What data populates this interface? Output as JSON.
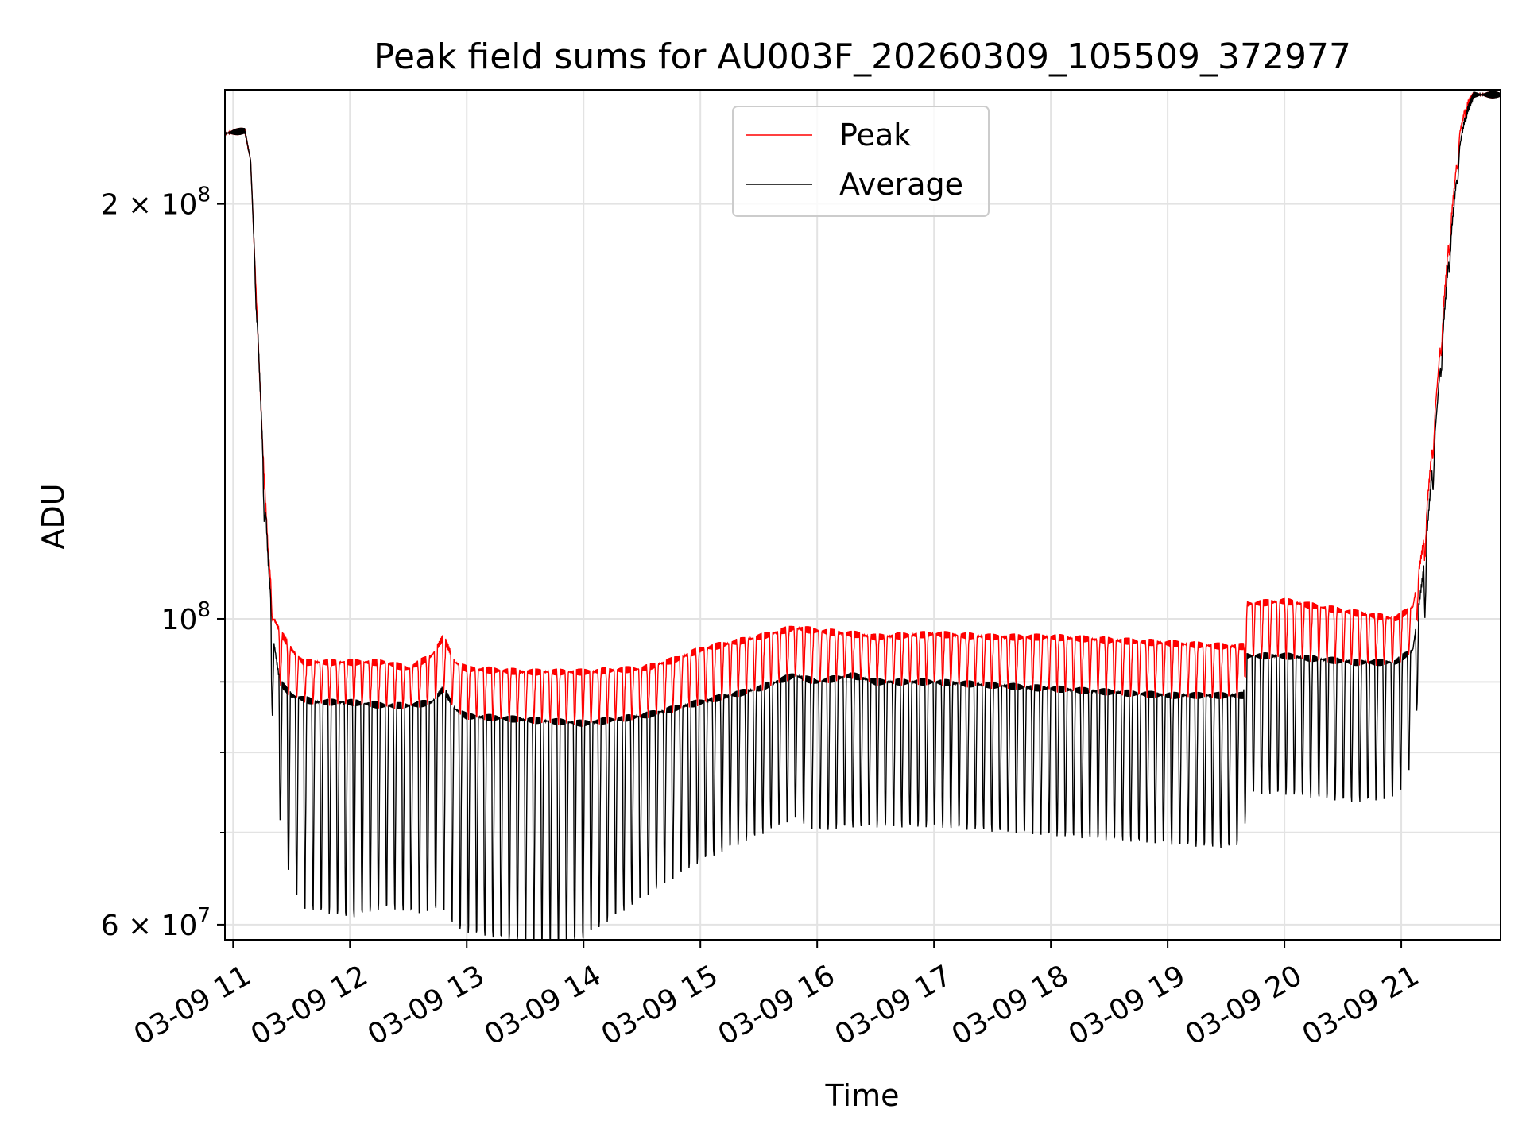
{
  "chart_data": {
    "type": "line",
    "title": "Peak field sums for AU003F_20260309_105509_372977",
    "xlabel": "Time",
    "ylabel": "ADU",
    "yscale": "log",
    "xlim": [
      10.93,
      21.85
    ],
    "ylim": [
      58500000,
      242000000
    ],
    "grid": true,
    "legend": {
      "location": "upper center",
      "entries": [
        "Peak",
        "Average"
      ]
    },
    "x_ticks": [
      {
        "value": 11,
        "label": "03-09 11"
      },
      {
        "value": 12,
        "label": "03-09 12"
      },
      {
        "value": 13,
        "label": "03-09 13"
      },
      {
        "value": 14,
        "label": "03-09 14"
      },
      {
        "value": 15,
        "label": "03-09 15"
      },
      {
        "value": 16,
        "label": "03-09 16"
      },
      {
        "value": 17,
        "label": "03-09 17"
      },
      {
        "value": 18,
        "label": "03-09 18"
      },
      {
        "value": 19,
        "label": "03-09 19"
      },
      {
        "value": 20,
        "label": "03-09 20"
      },
      {
        "value": 21,
        "label": "03-09 21"
      }
    ],
    "y_major_ticks": [
      {
        "value": 60000000,
        "base": "6 × 10",
        "exp": "7"
      },
      {
        "value": 100000000,
        "base": "10",
        "exp": "8"
      },
      {
        "value": 200000000,
        "base": "2 × 10",
        "exp": "8"
      }
    ],
    "y_minor_ticks": [
      70000000,
      80000000,
      90000000
    ],
    "series": [
      {
        "name": "Peak",
        "color": "#ff0000",
        "envelope_high": [
          [
            10.93,
            225000000
          ],
          [
            11.1,
            226000000
          ],
          [
            11.15,
            215000000
          ],
          [
            11.2,
            170000000
          ],
          [
            11.25,
            135000000
          ],
          [
            11.3,
            112000000
          ],
          [
            11.35,
            100000000
          ],
          [
            11.4,
            98000000
          ],
          [
            11.5,
            95000000
          ],
          [
            11.6,
            93000000
          ],
          [
            12.0,
            93000000
          ],
          [
            12.3,
            93000000
          ],
          [
            12.5,
            92000000
          ],
          [
            12.6,
            93000000
          ],
          [
            12.7,
            94000000
          ],
          [
            12.8,
            97000000
          ],
          [
            12.9,
            93000000
          ],
          [
            13.0,
            92000000
          ],
          [
            13.5,
            91500000
          ],
          [
            14.0,
            91500000
          ],
          [
            14.5,
            92000000
          ],
          [
            14.8,
            93500000
          ],
          [
            15.0,
            95000000
          ],
          [
            15.5,
            97000000
          ],
          [
            15.8,
            98500000
          ],
          [
            16.0,
            98000000
          ],
          [
            16.3,
            97500000
          ],
          [
            16.5,
            97000000
          ],
          [
            17.0,
            97500000
          ],
          [
            17.5,
            97000000
          ],
          [
            18.0,
            97000000
          ],
          [
            18.5,
            96500000
          ],
          [
            19.0,
            96000000
          ],
          [
            19.5,
            95500000
          ],
          [
            19.65,
            95500000
          ],
          [
            19.68,
            102500000
          ],
          [
            20.0,
            103000000
          ],
          [
            20.3,
            102000000
          ],
          [
            20.6,
            101000000
          ],
          [
            20.95,
            100000000
          ],
          [
            21.1,
            102000000
          ],
          [
            21.2,
            115000000
          ],
          [
            21.3,
            145000000
          ],
          [
            21.4,
            185000000
          ],
          [
            21.5,
            225000000
          ],
          [
            21.55,
            235000000
          ],
          [
            21.62,
            240000000
          ],
          [
            21.85,
            240000000
          ]
        ],
        "envelope_low": [
          [
            10.93,
            225000000
          ],
          [
            11.1,
            226000000
          ],
          [
            11.15,
            215000000
          ],
          [
            11.2,
            170000000
          ],
          [
            11.25,
            135000000
          ],
          [
            11.3,
            110000000
          ],
          [
            11.35,
            96000000
          ],
          [
            11.4,
            90000000
          ],
          [
            11.5,
            88000000
          ],
          [
            11.7,
            87000000
          ],
          [
            12.0,
            87000000
          ],
          [
            12.3,
            86500000
          ],
          [
            12.5,
            86500000
          ],
          [
            12.7,
            87000000
          ],
          [
            12.8,
            89000000
          ],
          [
            12.9,
            86000000
          ],
          [
            13.0,
            85000000
          ],
          [
            13.5,
            84500000
          ],
          [
            14.0,
            84000000
          ],
          [
            14.5,
            85000000
          ],
          [
            15.0,
            87000000
          ],
          [
            15.5,
            89000000
          ],
          [
            15.8,
            91000000
          ],
          [
            16.0,
            90000000
          ],
          [
            16.3,
            91000000
          ],
          [
            16.5,
            90000000
          ],
          [
            17.0,
            90000000
          ],
          [
            17.5,
            89500000
          ],
          [
            18.0,
            89000000
          ],
          [
            18.5,
            88500000
          ],
          [
            19.0,
            88000000
          ],
          [
            19.5,
            88000000
          ],
          [
            19.65,
            88000000
          ],
          [
            19.68,
            94000000
          ],
          [
            20.0,
            94000000
          ],
          [
            20.3,
            93500000
          ],
          [
            20.6,
            93000000
          ],
          [
            20.95,
            93000000
          ],
          [
            21.1,
            95000000
          ],
          [
            21.2,
            110000000
          ],
          [
            21.3,
            140000000
          ],
          [
            21.4,
            180000000
          ],
          [
            21.5,
            220000000
          ],
          [
            21.55,
            232000000
          ],
          [
            21.62,
            240000000
          ],
          [
            21.85,
            240000000
          ]
        ]
      },
      {
        "name": "Average",
        "color": "#000000",
        "envelope_high": [
          [
            10.93,
            225000000
          ],
          [
            11.1,
            226000000
          ],
          [
            11.15,
            215000000
          ],
          [
            11.2,
            170000000
          ],
          [
            11.25,
            135000000
          ],
          [
            11.3,
            110000000
          ],
          [
            11.35,
            96000000
          ],
          [
            11.4,
            90000000
          ],
          [
            11.5,
            88000000
          ],
          [
            11.7,
            87000000
          ],
          [
            12.0,
            87000000
          ],
          [
            12.3,
            86500000
          ],
          [
            12.5,
            86500000
          ],
          [
            12.7,
            87000000
          ],
          [
            12.8,
            89000000
          ],
          [
            12.9,
            86000000
          ],
          [
            13.0,
            85000000
          ],
          [
            13.5,
            84500000
          ],
          [
            14.0,
            84000000
          ],
          [
            14.5,
            85000000
          ],
          [
            15.0,
            87000000
          ],
          [
            15.5,
            89000000
          ],
          [
            15.8,
            91000000
          ],
          [
            16.0,
            90000000
          ],
          [
            16.3,
            91000000
          ],
          [
            16.5,
            90000000
          ],
          [
            17.0,
            90000000
          ],
          [
            17.5,
            89500000
          ],
          [
            18.0,
            89000000
          ],
          [
            18.5,
            88500000
          ],
          [
            19.0,
            88000000
          ],
          [
            19.5,
            88000000
          ],
          [
            19.65,
            88000000
          ],
          [
            19.68,
            94000000
          ],
          [
            20.0,
            94000000
          ],
          [
            20.3,
            93500000
          ],
          [
            20.6,
            93000000
          ],
          [
            20.95,
            93000000
          ],
          [
            21.1,
            95000000
          ],
          [
            21.2,
            110000000
          ],
          [
            21.3,
            140000000
          ],
          [
            21.4,
            180000000
          ],
          [
            21.5,
            220000000
          ],
          [
            21.55,
            232000000
          ],
          [
            21.62,
            240000000
          ],
          [
            21.85,
            240000000
          ]
        ],
        "envelope_low": [
          [
            10.93,
            225000000
          ],
          [
            11.1,
            226000000
          ],
          [
            11.15,
            215000000
          ],
          [
            11.2,
            165000000
          ],
          [
            11.25,
            128000000
          ],
          [
            11.3,
            100000000
          ],
          [
            11.35,
            80000000
          ],
          [
            11.4,
            72000000
          ],
          [
            11.5,
            64000000
          ],
          [
            11.6,
            62000000
          ],
          [
            12.0,
            61000000
          ],
          [
            12.3,
            62000000
          ],
          [
            12.6,
            61500000
          ],
          [
            12.8,
            62000000
          ],
          [
            12.9,
            60000000
          ],
          [
            13.0,
            59500000
          ],
          [
            13.5,
            58500000
          ],
          [
            13.8,
            58000000
          ],
          [
            14.0,
            59000000
          ],
          [
            14.5,
            63000000
          ],
          [
            15.0,
            67000000
          ],
          [
            15.5,
            70000000
          ],
          [
            15.8,
            72000000
          ],
          [
            16.0,
            70500000
          ],
          [
            16.3,
            71000000
          ],
          [
            16.5,
            71000000
          ],
          [
            17.0,
            71000000
          ],
          [
            17.5,
            70500000
          ],
          [
            18.0,
            70000000
          ],
          [
            18.5,
            69500000
          ],
          [
            19.0,
            69000000
          ],
          [
            19.5,
            68500000
          ],
          [
            19.65,
            69000000
          ],
          [
            19.68,
            75000000
          ],
          [
            20.0,
            75000000
          ],
          [
            20.3,
            74500000
          ],
          [
            20.6,
            74000000
          ],
          [
            20.95,
            74500000
          ],
          [
            21.05,
            77000000
          ],
          [
            21.1,
            80000000
          ],
          [
            21.2,
            100000000
          ],
          [
            21.3,
            135000000
          ],
          [
            21.4,
            175000000
          ],
          [
            21.5,
            215000000
          ],
          [
            21.55,
            230000000
          ],
          [
            21.62,
            240000000
          ],
          [
            21.85,
            240000000
          ]
        ]
      }
    ]
  }
}
